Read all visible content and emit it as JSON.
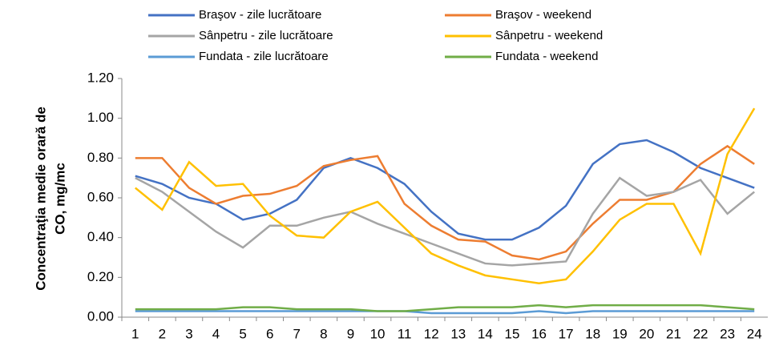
{
  "chart_data": {
    "type": "line",
    "y_label_lines": [
      "Concentraţia medie orară de",
      "CO, mg/mc"
    ],
    "categories": [
      "1",
      "2",
      "3",
      "4",
      "5",
      "6",
      "7",
      "8",
      "9",
      "10",
      "11",
      "12",
      "13",
      "14",
      "15",
      "16",
      "17",
      "18",
      "19",
      "20",
      "21",
      "22",
      "23",
      "24"
    ],
    "series": [
      {
        "name": "Braşov - zile lucrătoare",
        "color": "#4472c4",
        "values": [
          0.71,
          0.67,
          0.6,
          0.57,
          0.49,
          0.52,
          0.59,
          0.75,
          0.8,
          0.75,
          0.67,
          0.53,
          0.42,
          0.39,
          0.39,
          0.45,
          0.56,
          0.77,
          0.87,
          0.89,
          0.83,
          0.75,
          0.7,
          0.65
        ]
      },
      {
        "name": "Braşov - weekend",
        "color": "#ed7d31",
        "values": [
          0.8,
          0.8,
          0.65,
          0.57,
          0.61,
          0.62,
          0.66,
          0.76,
          0.79,
          0.81,
          0.57,
          0.46,
          0.39,
          0.38,
          0.31,
          0.29,
          0.33,
          0.47,
          0.59,
          0.59,
          0.63,
          0.77,
          0.86,
          0.77
        ]
      },
      {
        "name": "Sânpetru - zile lucrătoare",
        "color": "#a5a5a5",
        "values": [
          0.7,
          0.63,
          0.53,
          0.43,
          0.35,
          0.46,
          0.46,
          0.5,
          0.53,
          0.47,
          0.42,
          0.37,
          0.32,
          0.27,
          0.26,
          0.27,
          0.28,
          0.52,
          0.7,
          0.61,
          0.63,
          0.69,
          0.52,
          0.63
        ]
      },
      {
        "name": "Sânpetru - weekend",
        "color": "#ffc000",
        "values": [
          0.65,
          0.54,
          0.78,
          0.66,
          0.67,
          0.51,
          0.41,
          0.4,
          0.53,
          0.58,
          0.45,
          0.32,
          0.26,
          0.21,
          0.19,
          0.17,
          0.19,
          0.33,
          0.49,
          0.57,
          0.57,
          0.32,
          0.82,
          1.05
        ]
      },
      {
        "name": "Fundata - zile lucrătoare",
        "color": "#5b9bd5",
        "values": [
          0.03,
          0.03,
          0.03,
          0.03,
          0.03,
          0.03,
          0.03,
          0.03,
          0.03,
          0.03,
          0.03,
          0.02,
          0.02,
          0.02,
          0.02,
          0.03,
          0.02,
          0.03,
          0.03,
          0.03,
          0.03,
          0.03,
          0.03,
          0.03
        ]
      },
      {
        "name": "Fundata - weekend",
        "color": "#70ad47",
        "values": [
          0.04,
          0.04,
          0.04,
          0.04,
          0.05,
          0.05,
          0.04,
          0.04,
          0.04,
          0.03,
          0.03,
          0.04,
          0.05,
          0.05,
          0.05,
          0.06,
          0.05,
          0.06,
          0.06,
          0.06,
          0.06,
          0.06,
          0.05,
          0.04
        ]
      }
    ],
    "ylim": [
      0,
      1.2
    ],
    "yticks": [
      {
        "value": 0,
        "label": "0.00"
      },
      {
        "value": 0.2,
        "label": "0.20"
      },
      {
        "value": 0.4,
        "label": "0.40"
      },
      {
        "value": 0.6,
        "label": "0.60"
      },
      {
        "value": 0.8,
        "label": "0.80"
      },
      {
        "value": 1.0,
        "label": "1.00"
      },
      {
        "value": 1.2,
        "label": "1.20"
      }
    ],
    "grid": false
  }
}
